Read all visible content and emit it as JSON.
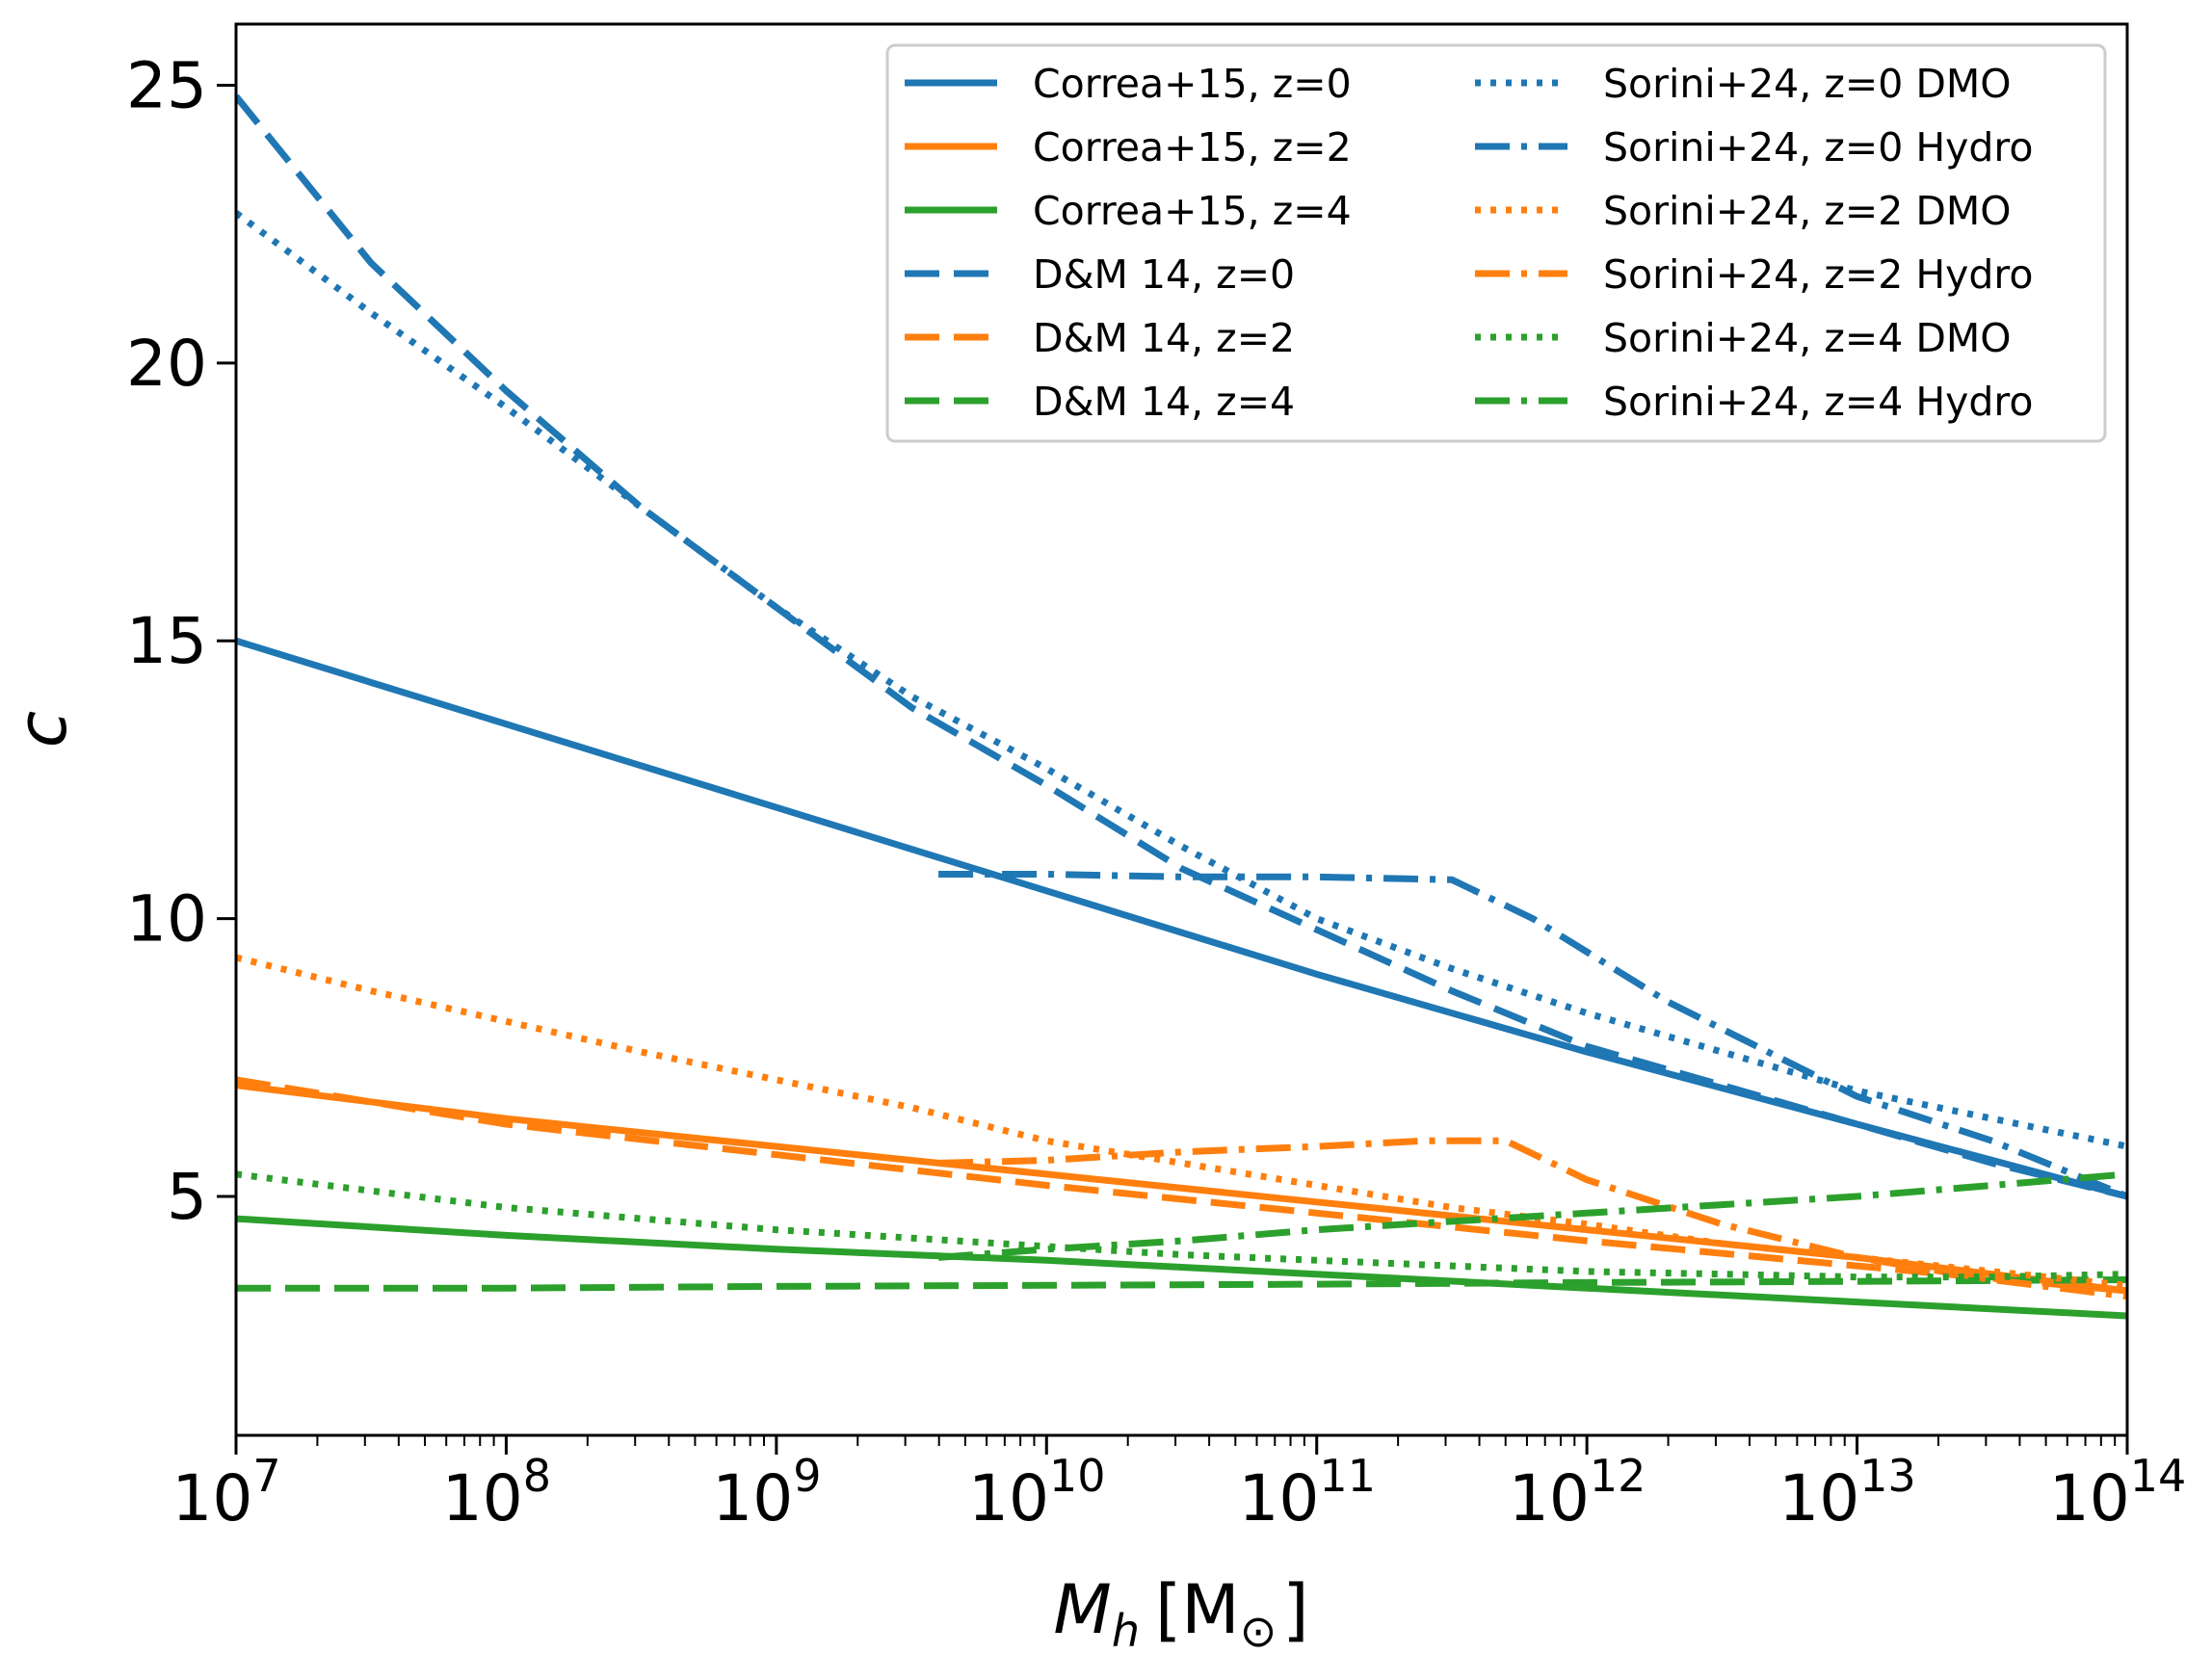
{
  "chart_data": {
    "type": "line",
    "title": "",
    "xlabel": "M_h [M_⊙]",
    "xlabel_parts": {
      "symbol": "M",
      "subscript": "h",
      "unit_open": "[M",
      "unit_sub": "⊙",
      "unit_close": "]"
    },
    "ylabel": "c",
    "xscale": "log",
    "xlim_log10": [
      7,
      14
    ],
    "ylim": [
      0.7,
      26.1
    ],
    "x_tick_base": "10",
    "x_ticks": [
      {
        "label": "10",
        "exp": "7",
        "log10": 7
      },
      {
        "label": "10",
        "exp": "8",
        "log10": 8
      },
      {
        "label": "10",
        "exp": "9",
        "log10": 9
      },
      {
        "label": "10",
        "exp": "10",
        "log10": 10
      },
      {
        "label": "10",
        "exp": "11",
        "log10": 11
      },
      {
        "label": "10",
        "exp": "12",
        "log10": 12
      },
      {
        "label": "10",
        "exp": "13",
        "log10": 13
      },
      {
        "label": "10",
        "exp": "14",
        "log10": 14
      }
    ],
    "y_ticks": [
      {
        "label": "5",
        "value": 5
      },
      {
        "label": "10",
        "value": 10
      },
      {
        "label": "15",
        "value": 15
      },
      {
        "label": "20",
        "value": 20
      },
      {
        "label": "25",
        "value": 25
      }
    ],
    "grid": false,
    "legend_position": "top-right",
    "series": [
      {
        "name": "Correa+15, z=0",
        "color": "#1f77b4",
        "style": "solid",
        "x_log10": [
          7,
          8,
          9,
          10,
          11,
          12,
          13,
          14
        ],
        "y": [
          15.0,
          13.5,
          12.0,
          10.5,
          9.0,
          7.6,
          6.3,
          5.0
        ]
      },
      {
        "name": "Correa+15, z=2",
        "color": "#ff7f0e",
        "style": "solid",
        "x_log10": [
          7,
          8,
          9,
          10,
          11,
          12,
          13,
          14
        ],
        "y": [
          7.0,
          6.4,
          5.9,
          5.4,
          4.9,
          4.4,
          3.9,
          3.3
        ]
      },
      {
        "name": "Correa+15, z=4",
        "color": "#2ca02c",
        "style": "solid",
        "x_log10": [
          7,
          8,
          9,
          10,
          11,
          12,
          13,
          14
        ],
        "y": [
          4.6,
          4.3,
          4.05,
          3.85,
          3.6,
          3.35,
          3.1,
          2.85
        ]
      },
      {
        "name": "D&M 14, z=0",
        "color": "#1f77b4",
        "style": "dashed",
        "x_log10": [
          7,
          7.5,
          8,
          8.5,
          9,
          9.5,
          10,
          10.5,
          11,
          11.5,
          12,
          12.5,
          13,
          13.5,
          14
        ],
        "y": [
          24.8,
          21.8,
          19.5,
          17.4,
          15.6,
          13.8,
          12.4,
          10.9,
          9.8,
          8.7,
          7.7,
          7.0,
          6.3,
          5.6,
          5.0
        ]
      },
      {
        "name": "D&M 14, z=2",
        "color": "#ff7f0e",
        "style": "dashed",
        "x_log10": [
          7,
          8,
          9,
          10,
          11,
          12,
          13,
          14
        ],
        "y": [
          7.1,
          6.3,
          5.75,
          5.2,
          4.7,
          4.2,
          3.75,
          3.3
        ]
      },
      {
        "name": "D&M 14, z=4",
        "color": "#2ca02c",
        "style": "dashed",
        "x_log10": [
          7,
          8,
          9,
          10,
          11,
          12,
          13,
          14
        ],
        "y": [
          3.35,
          3.35,
          3.38,
          3.4,
          3.42,
          3.45,
          3.47,
          3.5
        ]
      },
      {
        "name": "Sorini+24, z=0 DMO",
        "color": "#1f77b4",
        "style": "dotted",
        "x_log10": [
          7,
          7.5,
          8,
          8.5,
          9,
          9.5,
          10,
          10.5,
          11,
          11.5,
          12,
          12.5,
          13,
          13.5,
          14
        ],
        "y": [
          22.7,
          20.9,
          19.2,
          17.4,
          15.6,
          14.0,
          12.7,
          11.3,
          10.0,
          9.1,
          8.3,
          7.6,
          6.9,
          6.4,
          5.9
        ]
      },
      {
        "name": "Sorini+24, z=0 Hydro",
        "color": "#1f77b4",
        "style": "dashdot",
        "x_log10": [
          9.6,
          10.0,
          10.5,
          11.0,
          11.5,
          11.8,
          12.3,
          13.0,
          13.5,
          14.0
        ],
        "y": [
          10.8,
          10.8,
          10.75,
          10.75,
          10.7,
          10.0,
          8.5,
          6.8,
          6.0,
          5.0
        ]
      },
      {
        "name": "Sorini+24, z=2 DMO",
        "color": "#ff7f0e",
        "style": "dotted",
        "x_log10": [
          7,
          7.5,
          8,
          8.5,
          9,
          9.5,
          10,
          10.5,
          11,
          11.5,
          12,
          12.5,
          13,
          13.5,
          14
        ],
        "y": [
          9.3,
          8.7,
          8.15,
          7.6,
          7.1,
          6.6,
          6.0,
          5.6,
          5.2,
          4.8,
          4.5,
          4.15,
          3.9,
          3.65,
          3.4
        ]
      },
      {
        "name": "Sorini+24, z=2 Hydro",
        "color": "#ff7f0e",
        "style": "dashdot",
        "x_log10": [
          9.6,
          10.0,
          10.5,
          11.0,
          11.4,
          11.7,
          12.0,
          12.5,
          13.0,
          13.5,
          14.0
        ],
        "y": [
          5.6,
          5.65,
          5.8,
          5.9,
          6.0,
          6.0,
          5.3,
          4.5,
          3.9,
          3.5,
          3.2
        ]
      },
      {
        "name": "Sorini+24, z=4 DMO",
        "color": "#2ca02c",
        "style": "dotted",
        "x_log10": [
          7,
          7.5,
          8,
          8.5,
          9,
          9.5,
          10,
          10.5,
          11,
          11.5,
          12,
          12.5,
          13,
          13.5,
          14
        ],
        "y": [
          5.4,
          5.1,
          4.8,
          4.6,
          4.4,
          4.25,
          4.1,
          3.95,
          3.85,
          3.75,
          3.65,
          3.6,
          3.55,
          3.55,
          3.6
        ]
      },
      {
        "name": "Sorini+24, z=4 Hydro",
        "color": "#2ca02c",
        "style": "dashdot",
        "x_log10": [
          9.6,
          10.0,
          10.5,
          11.0,
          11.5,
          12.0,
          12.5,
          13.0,
          13.5,
          14.0
        ],
        "y": [
          3.9,
          4.05,
          4.2,
          4.4,
          4.55,
          4.7,
          4.85,
          5.0,
          5.2,
          5.4
        ]
      }
    ],
    "legend_order": [
      [
        "Correa+15, z=0",
        "Correa+15, z=2",
        "Correa+15, z=4",
        "D&M 14, z=0",
        "D&M 14, z=2",
        "D&M 14, z=4"
      ],
      [
        "Sorini+24, z=0 DMO",
        "Sorini+24, z=0 Hydro",
        "Sorini+24, z=2 DMO",
        "Sorini+24, z=2 Hydro",
        "Sorini+24, z=4 DMO",
        "Sorini+24, z=4 Hydro"
      ]
    ]
  }
}
